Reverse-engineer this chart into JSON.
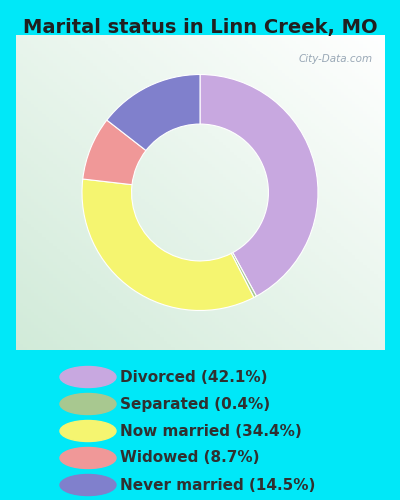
{
  "title": "Marital status in Linn Creek, MO",
  "categories": [
    "Divorced",
    "Separated",
    "Now married",
    "Widowed",
    "Never married"
  ],
  "values": [
    42.1,
    0.4,
    34.4,
    8.7,
    14.5
  ],
  "pie_colors": [
    "#c8a8e0",
    "#a8c890",
    "#f5f570",
    "#f09898",
    "#8080cc"
  ],
  "legend_colors": [
    "#c8a8e0",
    "#a8c890",
    "#f5f570",
    "#f09898",
    "#8080cc"
  ],
  "bg_color_outer": "#00e8f8",
  "chart_bg_top_left": "#d0e8d8",
  "chart_bg_bottom_right": "#f0f8f0",
  "title_color": "#202020",
  "legend_text_color": "#303030",
  "watermark": "City-Data.com",
  "title_fontsize": 14,
  "legend_fontsize": 11
}
